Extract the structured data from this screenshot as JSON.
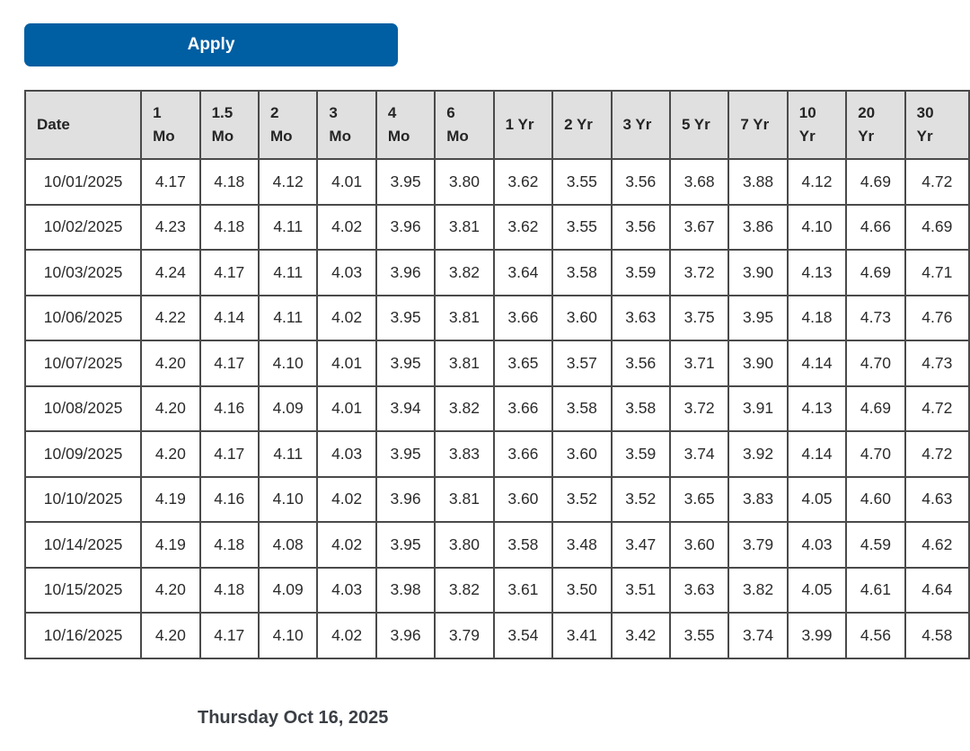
{
  "apply_button": {
    "label": "Apply"
  },
  "colors": {
    "button_blue": "#005ea2",
    "header_bg": "#e0e0e0",
    "border": "#4a4a4a",
    "text": "#2b2b2b",
    "footer_text": "#3b3f45"
  },
  "table": {
    "columns": [
      "Date",
      "1\nMo",
      "1.5\nMo",
      "2\nMo",
      "3\nMo",
      "4\nMo",
      "6\nMo",
      "1 Yr",
      "2 Yr",
      "3 Yr",
      "5 Yr",
      "7 Yr",
      "10\nYr",
      "20\nYr",
      "30\nYr"
    ],
    "rows": [
      {
        "date": "10/01/2025",
        "values": [
          "4.17",
          "4.18",
          "4.12",
          "4.01",
          "3.95",
          "3.80",
          "3.62",
          "3.55",
          "3.56",
          "3.68",
          "3.88",
          "4.12",
          "4.69",
          "4.72"
        ]
      },
      {
        "date": "10/02/2025",
        "values": [
          "4.23",
          "4.18",
          "4.11",
          "4.02",
          "3.96",
          "3.81",
          "3.62",
          "3.55",
          "3.56",
          "3.67",
          "3.86",
          "4.10",
          "4.66",
          "4.69"
        ]
      },
      {
        "date": "10/03/2025",
        "values": [
          "4.24",
          "4.17",
          "4.11",
          "4.03",
          "3.96",
          "3.82",
          "3.64",
          "3.58",
          "3.59",
          "3.72",
          "3.90",
          "4.13",
          "4.69",
          "4.71"
        ]
      },
      {
        "date": "10/06/2025",
        "values": [
          "4.22",
          "4.14",
          "4.11",
          "4.02",
          "3.95",
          "3.81",
          "3.66",
          "3.60",
          "3.63",
          "3.75",
          "3.95",
          "4.18",
          "4.73",
          "4.76"
        ]
      },
      {
        "date": "10/07/2025",
        "values": [
          "4.20",
          "4.17",
          "4.10",
          "4.01",
          "3.95",
          "3.81",
          "3.65",
          "3.57",
          "3.56",
          "3.71",
          "3.90",
          "4.14",
          "4.70",
          "4.73"
        ]
      },
      {
        "date": "10/08/2025",
        "values": [
          "4.20",
          "4.16",
          "4.09",
          "4.01",
          "3.94",
          "3.82",
          "3.66",
          "3.58",
          "3.58",
          "3.72",
          "3.91",
          "4.13",
          "4.69",
          "4.72"
        ]
      },
      {
        "date": "10/09/2025",
        "values": [
          "4.20",
          "4.17",
          "4.11",
          "4.03",
          "3.95",
          "3.83",
          "3.66",
          "3.60",
          "3.59",
          "3.74",
          "3.92",
          "4.14",
          "4.70",
          "4.72"
        ]
      },
      {
        "date": "10/10/2025",
        "values": [
          "4.19",
          "4.16",
          "4.10",
          "4.02",
          "3.96",
          "3.81",
          "3.60",
          "3.52",
          "3.52",
          "3.65",
          "3.83",
          "4.05",
          "4.60",
          "4.63"
        ]
      },
      {
        "date": "10/14/2025",
        "values": [
          "4.19",
          "4.18",
          "4.08",
          "4.02",
          "3.95",
          "3.80",
          "3.58",
          "3.48",
          "3.47",
          "3.60",
          "3.79",
          "4.03",
          "4.59",
          "4.62"
        ]
      },
      {
        "date": "10/15/2025",
        "values": [
          "4.20",
          "4.18",
          "4.09",
          "4.03",
          "3.98",
          "3.82",
          "3.61",
          "3.50",
          "3.51",
          "3.63",
          "3.82",
          "4.05",
          "4.61",
          "4.64"
        ]
      },
      {
        "date": "10/16/2025",
        "values": [
          "4.20",
          "4.17",
          "4.10",
          "4.02",
          "3.96",
          "3.79",
          "3.54",
          "3.41",
          "3.42",
          "3.55",
          "3.74",
          "3.99",
          "4.56",
          "4.58"
        ]
      }
    ]
  },
  "footer": {
    "date_label": "Thursday Oct 16, 2025"
  }
}
